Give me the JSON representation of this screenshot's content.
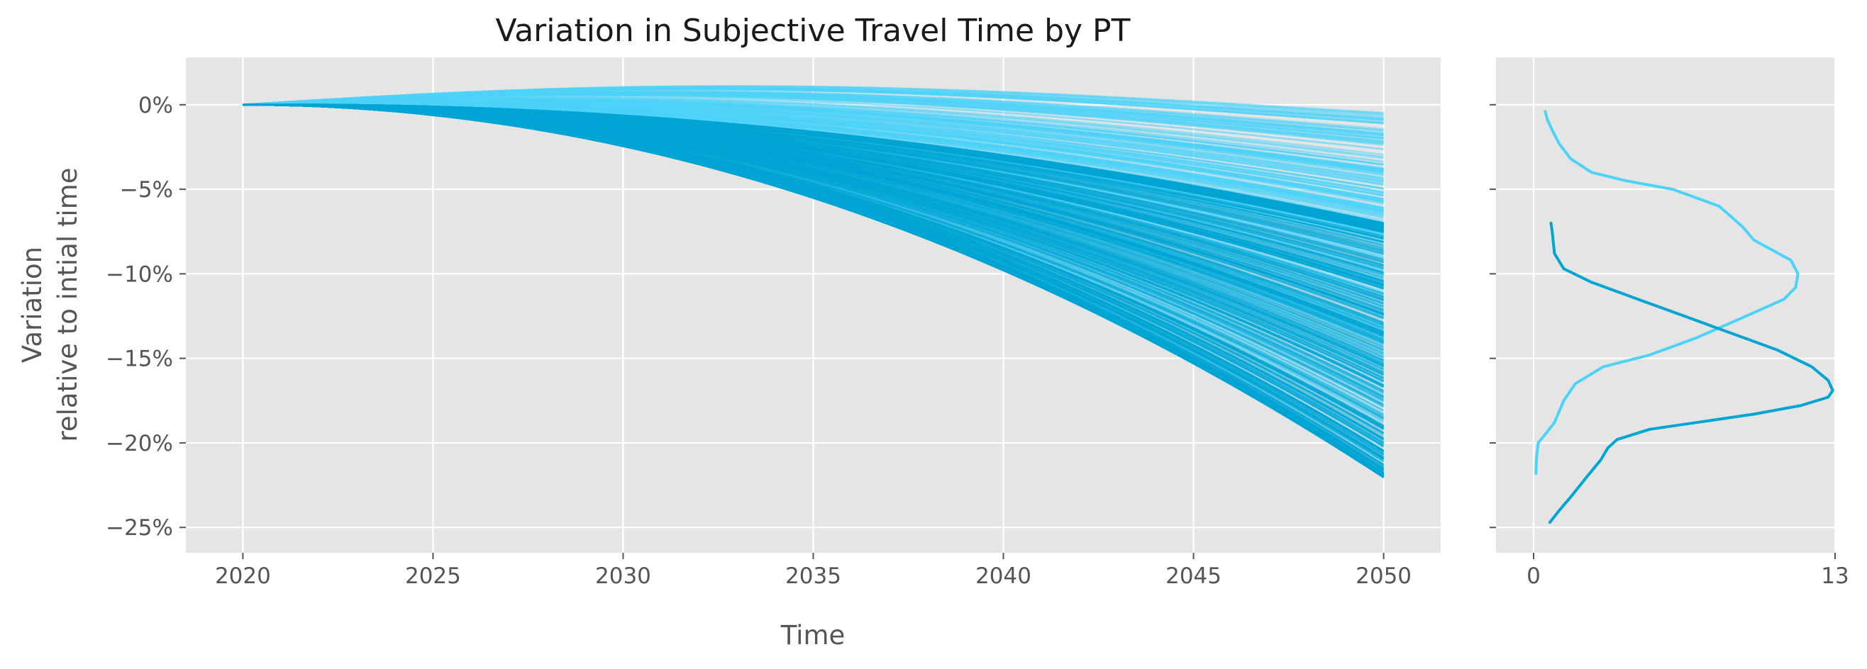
{
  "chart_data": [
    {
      "type": "line",
      "title": "Variation in Subjective Travel Time by PT",
      "xlabel": "Time",
      "ylabel": [
        "Variation",
        "relative to intial time"
      ],
      "xlim": [
        2018.5,
        2051.5
      ],
      "ylim": [
        -26.5,
        2.8
      ],
      "xticks": [
        2020,
        2025,
        2030,
        2035,
        2040,
        2045,
        2050
      ],
      "xtick_labels": [
        "2020",
        "2025",
        "2030",
        "2035",
        "2040",
        "2045",
        "2050"
      ],
      "yticks": [
        0,
        -5,
        -10,
        -15,
        -20,
        -25
      ],
      "ytick_labels": [
        "0%",
        "−5%",
        "−10%",
        "−15%",
        "−20%",
        "−25%"
      ],
      "grid": true,
      "series": [
        {
          "color": "#00A5D4",
          "x_start": 2020,
          "x_end": 2050,
          "final_value_range": [
            -24.7,
            -7.0
          ],
          "note_count": 300
        },
        {
          "color": "#4DD2F8",
          "x_start": 2020,
          "x_end": 2050,
          "final_value_range": [
            -21.8,
            -0.4
          ],
          "note_count": 300
        }
      ]
    },
    {
      "type": "line",
      "xlim": [
        0,
        13
      ],
      "ylim": [
        -26.5,
        2.8
      ],
      "xticks": [
        0,
        13
      ],
      "xtick_labels": [
        "0",
        "13"
      ],
      "grid": true,
      "series": [
        {
          "color": "#00A5D4",
          "x": [
            0.7,
            1.1,
            1.6,
            2.3,
            2.9,
            3.2,
            3.6,
            5.0,
            7.0,
            9.5,
            11.5,
            12.7,
            12.9,
            12.7,
            12.0,
            10.5,
            8.5,
            6.5,
            4.5,
            2.5,
            1.3,
            0.9,
            0.8,
            0.75
          ],
          "y": [
            -24.7,
            -24.0,
            -23.2,
            -22.0,
            -21.0,
            -20.3,
            -19.8,
            -19.2,
            -18.8,
            -18.3,
            -17.8,
            -17.3,
            -16.9,
            -16.3,
            -15.5,
            -14.5,
            -13.5,
            -12.5,
            -11.5,
            -10.5,
            -9.7,
            -8.8,
            -7.5,
            -7.0
          ]
        },
        {
          "color": "#4DD2F8",
          "x": [
            0.1,
            0.12,
            0.2,
            0.5,
            0.9,
            1.3,
            1.8,
            3.0,
            5.0,
            7.0,
            9.0,
            10.8,
            11.3,
            11.4,
            11.1,
            10.3,
            9.5,
            9.0,
            8.0,
            6.0,
            4.0,
            2.5,
            1.6,
            1.1,
            0.8,
            0.6,
            0.5
          ],
          "y": [
            -21.8,
            -21.0,
            -20.0,
            -19.5,
            -18.8,
            -17.5,
            -16.5,
            -15.5,
            -14.8,
            -13.8,
            -12.6,
            -11.5,
            -10.8,
            -10.0,
            -9.2,
            -8.6,
            -8.0,
            -7.2,
            -6.0,
            -5.0,
            -4.5,
            -4.0,
            -3.2,
            -2.3,
            -1.5,
            -0.9,
            -0.4
          ]
        }
      ]
    }
  ]
}
